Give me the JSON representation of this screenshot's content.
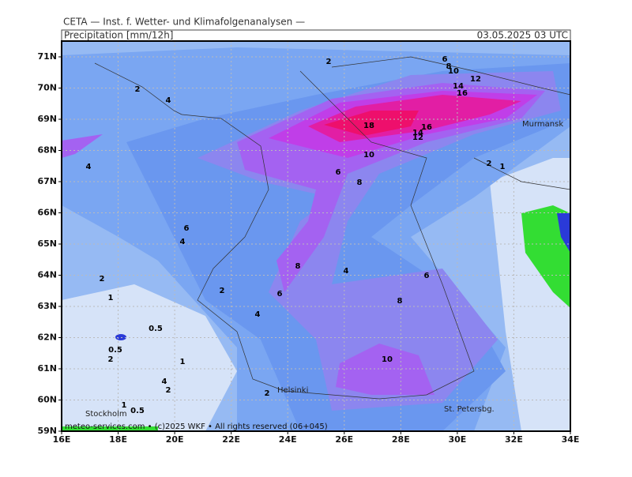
{
  "header": {
    "org": "CETA — Inst. f. Wetter- und Klimafolgenanalysen —",
    "title": "Precipitation [mm/12h]",
    "datetime": "03.05.2025 03 UTC"
  },
  "axes": {
    "lat_labels": [
      "71N",
      "70N",
      "69N",
      "68N",
      "67N",
      "66N",
      "65N",
      "64N",
      "63N",
      "62N",
      "61N",
      "60N",
      "59N"
    ],
    "lon_labels": [
      "16E",
      "18E",
      "20E",
      "22E",
      "24E",
      "26E",
      "28E",
      "30E",
      "32E",
      "34E"
    ]
  },
  "contour_labels": [
    2,
    6,
    8,
    10,
    12,
    14,
    16,
    2,
    4,
    18,
    16,
    14,
    12,
    10,
    4,
    6,
    8,
    2,
    1,
    6,
    4,
    8,
    4,
    6,
    2,
    1,
    2,
    6,
    8,
    4,
    0.5,
    0.5,
    2,
    1,
    10,
    4,
    2,
    2,
    1,
    0.5
  ],
  "cities": [
    "Murmansk",
    "Helsinki",
    "Stockholm",
    "St. Petersbg."
  ],
  "footer": "meteo-services.com • (c)2025 WKF • All rights reserved (06+045)"
}
